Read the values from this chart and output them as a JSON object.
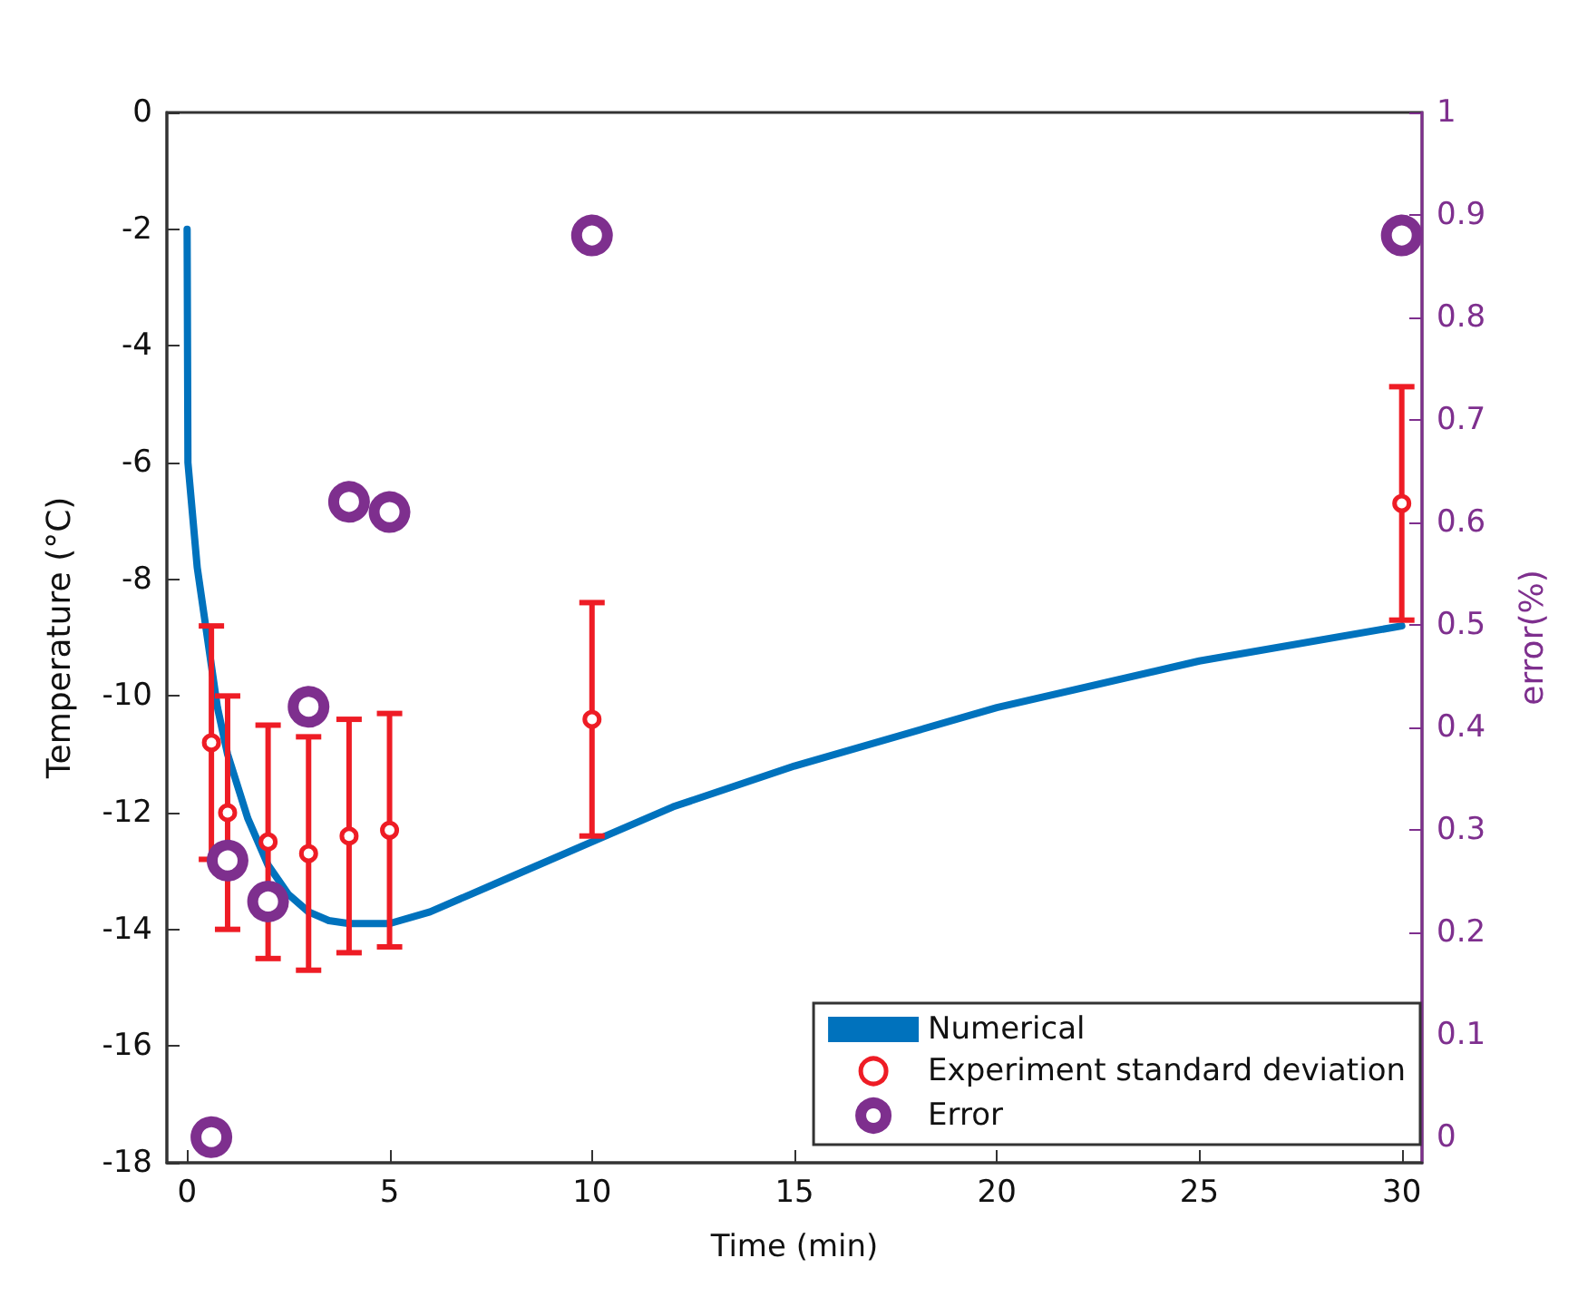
{
  "chart_data": {
    "type": "line",
    "xlabel": "Time (min)",
    "ylabel": "Temperature (°C)",
    "y2label": "error(%)",
    "xlim": [
      -0.5,
      30.5
    ],
    "xticks": [
      0,
      5,
      10,
      15,
      20,
      25,
      30
    ],
    "ylim": [
      -18,
      0
    ],
    "yticks": [
      -18,
      -16,
      -14,
      -12,
      -10,
      -8,
      -6,
      -4,
      -2,
      0
    ],
    "y2lim": [
      -0.025,
      1
    ],
    "y2ticks": [
      0,
      0.1,
      0.2,
      0.3,
      0.4,
      0.5,
      0.6,
      0.7,
      0.8,
      0.9,
      1
    ],
    "grid": false,
    "legend": "bottom right",
    "series": [
      {
        "name": "Numerical",
        "marker": "none",
        "color": "#0072bd",
        "x": [
          0,
          0.02,
          0.25,
          0.5,
          0.75,
          1,
          1.5,
          2,
          2.5,
          3,
          3.5,
          4,
          5,
          6,
          7,
          8,
          10,
          12,
          15,
          20,
          25,
          30
        ],
        "values": [
          -2,
          -6,
          -7.8,
          -9,
          -10.2,
          -11,
          -12.1,
          -12.9,
          -13.4,
          -13.7,
          -13.85,
          -13.9,
          -13.9,
          -13.7,
          -13.4,
          -13.1,
          -12.5,
          -11.9,
          -11.2,
          -10.2,
          -9.4,
          -8.8
        ]
      },
      {
        "name": "Experiment standard deviation",
        "type": "scatter",
        "marker": "circle",
        "color": "#ee1c25",
        "x": [
          0.6,
          1,
          2,
          3,
          4,
          5,
          10,
          30
        ],
        "values": [
          -10.8,
          -12,
          -12.5,
          -12.7,
          -12.4,
          -12.3,
          -10.4,
          -6.7
        ],
        "errors": [
          2,
          2,
          2,
          2,
          2,
          2,
          2,
          2
        ]
      },
      {
        "name": "Error",
        "type": "scatter",
        "marker": "circle",
        "axis": "y2",
        "color": "#7e2f8e",
        "x": [
          0.6,
          1,
          2,
          3,
          4,
          5,
          10,
          30
        ],
        "values": [
          0,
          0.27,
          0.23,
          0.42,
          0.62,
          0.61,
          0.88,
          0.88
        ]
      }
    ]
  }
}
